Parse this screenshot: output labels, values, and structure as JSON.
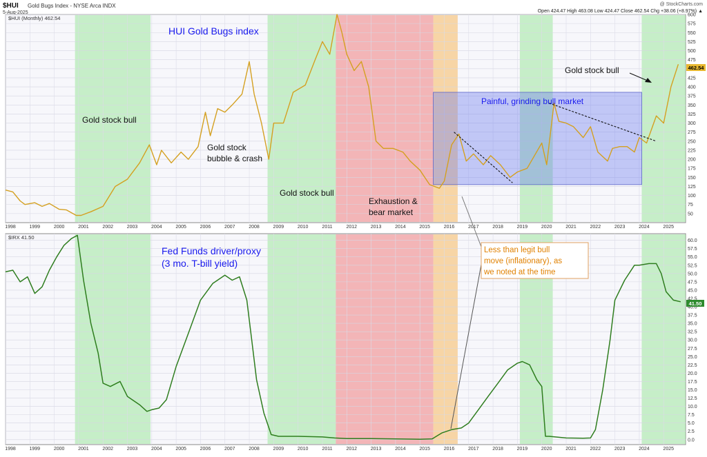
{
  "header": {
    "symbol": "$HUI",
    "name": "Gold Bugs Index - NYSE Arca INDX",
    "date": "5-Aug-2025",
    "watermark": "@ StockCharts.com",
    "ohlc": "Open 424.47   High 463.08   Low 424.47   Close 462.54   Chg +38.06 (+8.97%) ▲"
  },
  "colors": {
    "hui_line": "#d4a020",
    "irx_line": "#2e7d1e",
    "bull_zone": "#9ee89e",
    "bear_zone": "#f08080",
    "orange_zone": "#f7c98a",
    "blue_box": "#6a78f0",
    "price_tag_hui": "#e8b830",
    "price_tag_irx": "#2e8b2e",
    "blue_text": "#1a1aee",
    "orange_text": "#e08000"
  },
  "chart_data": [
    {
      "type": "line",
      "title": "HUI Gold Bugs index",
      "legend": "$HUI (Monthly) 462.54",
      "last_value_label": "462.54",
      "ylim": [
        25,
        600
      ],
      "xlim": [
        1998,
        2025.9
      ],
      "y_ticks": [
        "50",
        "75",
        "100",
        "125",
        "150",
        "175",
        "200",
        "225",
        "250",
        "275",
        "300",
        "325",
        "350",
        "375",
        "400",
        "425",
        "450",
        "475",
        "500",
        "525",
        "550",
        "575",
        "600"
      ],
      "x_ticks": [
        "1998",
        "1999",
        "2000",
        "2001",
        "2002",
        "2003",
        "2004",
        "2005",
        "2006",
        "2007",
        "2008",
        "2009",
        "2010",
        "2011",
        "2012",
        "2013",
        "2014",
        "2015",
        "2016",
        "2017",
        "2018",
        "2019",
        "2020",
        "2021",
        "2022",
        "2023",
        "2024",
        "2025"
      ],
      "series": [
        {
          "x": [
            1998.0,
            1998.3,
            1998.6,
            1998.8,
            1999.2,
            1999.5,
            1999.8,
            2000.2,
            2000.5,
            2000.9,
            2001.1,
            2001.5,
            2002.0,
            2002.5,
            2003.0,
            2003.5,
            2003.9,
            2004.2,
            2004.4,
            2004.8,
            2005.2,
            2005.5,
            2005.9,
            2006.2,
            2006.4,
            2006.7,
            2007.0,
            2007.3,
            2007.7,
            2008.0,
            2008.2,
            2008.5,
            2008.8,
            2009.0,
            2009.4,
            2009.8,
            2010.3,
            2010.7,
            2011.0,
            2011.3,
            2011.6,
            2011.8,
            2012.0,
            2012.3,
            2012.6,
            2012.9,
            2013.2,
            2013.5,
            2013.9,
            2014.3,
            2014.6,
            2015.0,
            2015.4,
            2015.8,
            2016.0,
            2016.3,
            2016.6,
            2016.9,
            2017.2,
            2017.6,
            2017.9,
            2018.3,
            2018.7,
            2019.0,
            2019.4,
            2019.7,
            2020.0,
            2020.2,
            2020.5,
            2020.7,
            2021.0,
            2021.3,
            2021.7,
            2022.0,
            2022.3,
            2022.7,
            2022.9,
            2023.2,
            2023.5,
            2023.8,
            2024.0,
            2024.3,
            2024.7,
            2025.0,
            2025.3,
            2025.6
          ],
          "y": [
            115,
            110,
            85,
            75,
            80,
            70,
            78,
            62,
            60,
            45,
            45,
            55,
            70,
            125,
            145,
            190,
            240,
            185,
            225,
            190,
            220,
            200,
            235,
            330,
            265,
            340,
            330,
            350,
            380,
            470,
            380,
            300,
            200,
            300,
            300,
            385,
            405,
            475,
            525,
            490,
            600,
            550,
            490,
            445,
            470,
            400,
            250,
            230,
            230,
            220,
            195,
            170,
            130,
            120,
            140,
            240,
            270,
            195,
            215,
            185,
            210,
            185,
            150,
            165,
            175,
            210,
            245,
            185,
            355,
            305,
            300,
            290,
            260,
            290,
            220,
            195,
            230,
            235,
            235,
            220,
            260,
            245,
            320,
            300,
            400,
            462.54
          ]
        }
      ],
      "zones": [
        {
          "kind": "bull",
          "from": 2000.85,
          "to": 2003.95
        },
        {
          "kind": "bull",
          "from": 2008.75,
          "to": 2011.55
        },
        {
          "kind": "bear",
          "from": 2011.55,
          "to": 2015.55
        },
        {
          "kind": "orange",
          "from": 2015.55,
          "to": 2016.55
        },
        {
          "kind": "bull",
          "from": 2019.1,
          "to": 2020.45
        },
        {
          "kind": "bull",
          "from": 2024.1,
          "to": 2025.9
        }
      ],
      "box": {
        "x_from": 2015.55,
        "x_to": 2024.1,
        "y_from": 130,
        "y_to": 385
      },
      "trendlines": [
        {
          "x": [
            2016.4,
            2018.8
          ],
          "y": [
            275,
            135
          ]
        },
        {
          "x": [
            2020.3,
            2024.7
          ],
          "y": [
            355,
            250
          ]
        }
      ],
      "annotations": [
        {
          "text": "HUI Gold Bugs index",
          "kind": "title"
        },
        {
          "text": "Gold stock bull",
          "kind": "zone1"
        },
        {
          "text": "Gold stock bubble & crash",
          "kind": "bubble"
        },
        {
          "text": "Gold stock bull",
          "kind": "zone2"
        },
        {
          "text": "Exhaustion & bear market",
          "kind": "bear"
        },
        {
          "text": "Painful, grinding bull market",
          "kind": "box"
        },
        {
          "text": "Gold stock bull",
          "kind": "zone3"
        }
      ]
    },
    {
      "type": "line",
      "title": "Fed Funds driver/proxy (3 mo. T-bill yield)",
      "legend": "$IRX 41.50",
      "last_value_label": "41.50",
      "ylim": [
        -1.5,
        62
      ],
      "xlim": [
        1998,
        2025.9
      ],
      "y_ticks": [
        "0.0",
        "2.5",
        "5.0",
        "7.5",
        "10.0",
        "12.5",
        "15.0",
        "17.5",
        "20.0",
        "22.5",
        "25.0",
        "27.5",
        "30.0",
        "32.5",
        "35.0",
        "37.5",
        "40.0",
        "42.5",
        "45.0",
        "47.5",
        "50.0",
        "52.5",
        "55.0",
        "57.5",
        "60.0"
      ],
      "x_ticks": [
        "1998",
        "1999",
        "2000",
        "2001",
        "2002",
        "2003",
        "2004",
        "2005",
        "2006",
        "2007",
        "2008",
        "2009",
        "2010",
        "2011",
        "2012",
        "2013",
        "2014",
        "2015",
        "2016",
        "2017",
        "2018",
        "2019",
        "2020",
        "2021",
        "2022",
        "2023",
        "2024",
        "2025"
      ],
      "series": [
        {
          "x": [
            1998.0,
            1998.3,
            1998.6,
            1998.9,
            1999.2,
            1999.5,
            1999.8,
            2000.1,
            2000.4,
            2000.7,
            2000.95,
            2001.2,
            2001.5,
            2001.8,
            2002.0,
            2002.3,
            2002.7,
            2003.0,
            2003.5,
            2003.8,
            2004.0,
            2004.3,
            2004.6,
            2005.0,
            2005.5,
            2006.0,
            2006.5,
            2007.0,
            2007.3,
            2007.6,
            2007.9,
            2008.1,
            2008.3,
            2008.6,
            2008.9,
            2009.2,
            2010.0,
            2011.0,
            2011.5,
            2012.0,
            2013.0,
            2014.0,
            2015.0,
            2015.5,
            2015.9,
            2016.3,
            2016.7,
            2017.0,
            2017.4,
            2017.8,
            2018.2,
            2018.6,
            2019.0,
            2019.2,
            2019.5,
            2019.8,
            2020.0,
            2020.15,
            2020.3,
            2021.0,
            2021.7,
            2022.0,
            2022.2,
            2022.5,
            2022.8,
            2023.0,
            2023.4,
            2023.8,
            2024.0,
            2024.4,
            2024.7,
            2024.9,
            2025.1,
            2025.4,
            2025.7
          ],
          "y": [
            50.5,
            51.0,
            47.5,
            49.0,
            44.0,
            46.0,
            51.0,
            55.0,
            58.5,
            60.5,
            61.5,
            48.0,
            35.0,
            26.0,
            17.0,
            16.0,
            17.5,
            13.0,
            10.5,
            8.5,
            9.0,
            9.5,
            12.0,
            22.0,
            32.0,
            42.0,
            47.0,
            49.5,
            48.0,
            49.0,
            42.0,
            30.0,
            18.0,
            8.0,
            1.5,
            1.0,
            1.0,
            0.8,
            0.5,
            0.3,
            0.3,
            0.2,
            0.1,
            0.2,
            2.0,
            3.0,
            3.5,
            5.0,
            9.0,
            13.0,
            17.0,
            21.0,
            23.0,
            23.5,
            22.5,
            18.0,
            16.0,
            1.0,
            1.0,
            0.5,
            0.4,
            0.5,
            3.0,
            15.0,
            30.0,
            42.0,
            48.0,
            52.5,
            52.5,
            53.0,
            53.0,
            50.0,
            44.5,
            42.0,
            41.5
          ]
        }
      ],
      "zones": [
        {
          "kind": "bull",
          "from": 2000.85,
          "to": 2003.95
        },
        {
          "kind": "bull",
          "from": 2008.75,
          "to": 2011.55
        },
        {
          "kind": "bear",
          "from": 2011.55,
          "to": 2015.55
        },
        {
          "kind": "orange",
          "from": 2015.55,
          "to": 2016.55
        },
        {
          "kind": "bull",
          "from": 2019.1,
          "to": 2020.45
        },
        {
          "kind": "bull",
          "from": 2024.1,
          "to": 2025.9
        }
      ],
      "annotations": [
        {
          "text": "Fed Funds driver/proxy",
          "kind": "title1"
        },
        {
          "text": "(3 mo. T-bill yield)",
          "kind": "title2"
        }
      ]
    }
  ],
  "callout": {
    "lines": [
      "Less than legit bull",
      "move (inflationary), as",
      "we noted at the time"
    ]
  }
}
